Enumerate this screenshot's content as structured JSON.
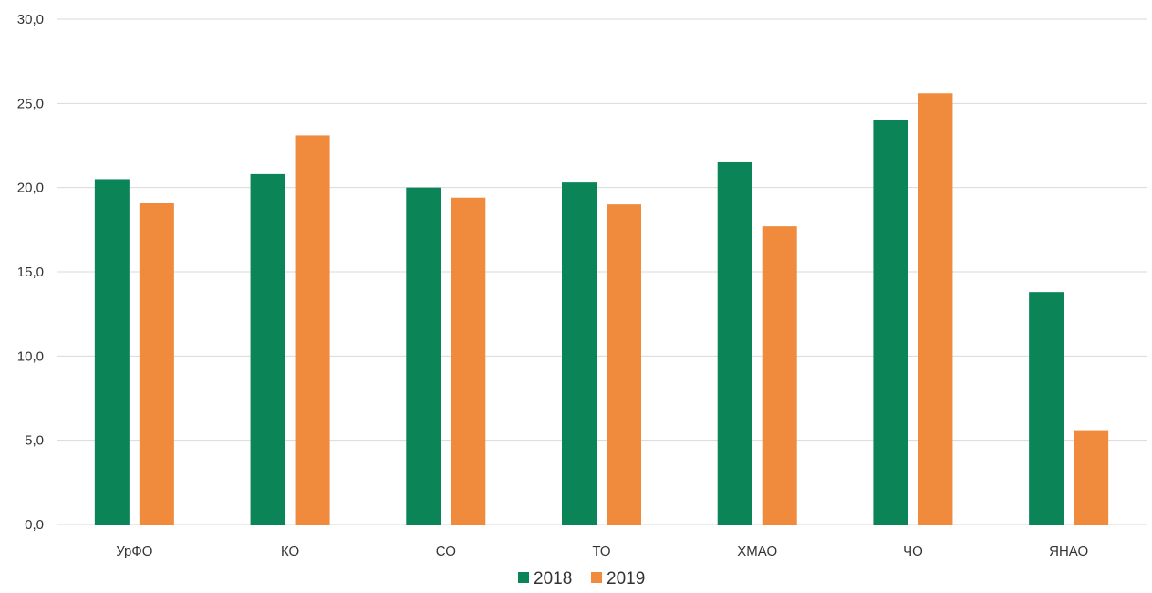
{
  "chart_data": {
    "type": "bar",
    "categories": [
      "УрФО",
      "КО",
      "СО",
      "ТО",
      "ХМАО",
      "ЧО",
      "ЯНАО"
    ],
    "series": [
      {
        "name": "2018",
        "values": [
          20.5,
          20.8,
          20.0,
          20.3,
          21.5,
          24.0,
          13.8
        ]
      },
      {
        "name": "2019",
        "values": [
          19.1,
          23.1,
          19.4,
          19.0,
          17.7,
          25.6,
          5.6
        ]
      }
    ],
    "ylim": [
      0,
      30
    ],
    "yticks": [
      "0,0",
      "5,0",
      "10,0",
      "15,0",
      "20,0",
      "25,0",
      "30,0"
    ],
    "ytick_values": [
      0,
      5,
      10,
      15,
      20,
      25,
      30
    ],
    "grid": true,
    "legend_position": "bottom",
    "colors": {
      "2018": "#0b8457",
      "2019": "#f08a3c"
    },
    "title": "",
    "xlabel": "",
    "ylabel": ""
  }
}
